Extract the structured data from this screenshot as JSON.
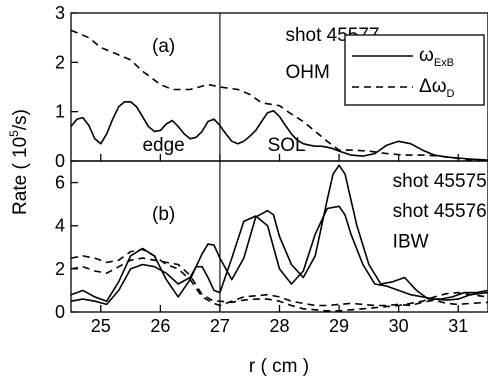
{
  "chart_data": {
    "type": "line",
    "ylabel": "Rate  ( 10",
    "ylabel_exp": "5",
    "ylabel_unit": "/s)",
    "xlabel": "r  ( cm )",
    "xlim": [
      24.5,
      31.5
    ],
    "xticks": [
      25,
      26,
      27,
      28,
      29,
      30,
      31
    ],
    "vertical_line_x": 27,
    "legend": {
      "position": "top-right",
      "items": [
        {
          "style": "solid",
          "symbol": "ω",
          "sub": "ExB"
        },
        {
          "style": "dashed",
          "symbol": "Δω",
          "sub": "D"
        }
      ]
    },
    "panels": [
      {
        "id": "a",
        "label": "(a)",
        "ylim": [
          0,
          3
        ],
        "yticks": [
          0,
          1,
          2,
          3
        ],
        "annotations": [
          {
            "text": "shot 45577",
            "x": 28.1,
            "y": 2.43
          },
          {
            "text": "OHM",
            "x": 28.1,
            "y": 1.68
          },
          {
            "text": "edge",
            "x": 25.7,
            "y": 0.2
          },
          {
            "text": "SOL",
            "x": 27.8,
            "y": 0.2
          }
        ],
        "series": [
          {
            "style": "solid",
            "x": [
              24.5,
              24.6,
              24.7,
              24.8,
              24.9,
              25.0,
              25.1,
              25.2,
              25.3,
              25.4,
              25.5,
              25.6,
              25.7,
              25.8,
              25.9,
              26.0,
              26.1,
              26.2,
              26.3,
              26.4,
              26.5,
              26.6,
              26.7,
              26.8,
              26.9,
              27.0,
              27.1,
              27.2,
              27.3,
              27.4,
              27.5,
              27.6,
              27.7,
              27.8,
              27.9,
              28.0,
              28.1,
              28.2,
              28.3,
              28.4,
              28.5,
              28.6,
              28.7,
              28.8,
              28.9,
              29.0,
              29.2,
              29.4,
              29.6,
              29.8,
              30.0,
              30.2,
              30.4,
              30.6,
              30.8,
              31.0,
              31.2,
              31.5
            ],
            "y": [
              0.7,
              0.85,
              0.88,
              0.72,
              0.45,
              0.35,
              0.55,
              0.85,
              1.1,
              1.2,
              1.2,
              1.1,
              0.9,
              0.7,
              0.6,
              0.62,
              0.75,
              0.82,
              0.7,
              0.55,
              0.45,
              0.48,
              0.6,
              0.8,
              0.85,
              0.72,
              0.55,
              0.4,
              0.35,
              0.4,
              0.5,
              0.62,
              0.8,
              0.98,
              1.02,
              0.9,
              0.72,
              0.55,
              0.42,
              0.35,
              0.32,
              0.3,
              0.3,
              0.28,
              0.25,
              0.2,
              0.12,
              0.1,
              0.15,
              0.32,
              0.4,
              0.35,
              0.22,
              0.12,
              0.08,
              0.06,
              0.04,
              0.02
            ]
          },
          {
            "style": "dashed",
            "x": [
              24.5,
              24.8,
              25.0,
              25.3,
              25.5,
              25.7,
              26.0,
              26.2,
              26.5,
              26.8,
              27.0,
              27.3,
              27.5,
              27.7,
              28.0,
              28.2,
              28.4,
              28.6,
              28.8,
              29.0,
              29.2,
              29.5,
              29.8,
              30.1,
              30.4,
              30.7,
              31.0,
              31.2,
              31.5
            ],
            "y": [
              2.65,
              2.5,
              2.3,
              2.15,
              2.05,
              1.82,
              1.55,
              1.45,
              1.45,
              1.55,
              1.5,
              1.45,
              1.35,
              1.18,
              1.12,
              0.95,
              0.8,
              0.6,
              0.4,
              0.22,
              0.22,
              0.2,
              0.15,
              0.12,
              0.12,
              0.1,
              0.05,
              0.02,
              0.02
            ]
          }
        ]
      },
      {
        "id": "b",
        "label": "(b)",
        "ylim": [
          0,
          7
        ],
        "yticks": [
          0,
          2,
          4,
          6
        ],
        "annotations": [
          {
            "text": "shot 45575",
            "x": 29.9,
            "y": 5.8
          },
          {
            "text": "shot 45576",
            "x": 29.9,
            "y": 4.4
          },
          {
            "text": "IBW",
            "x": 29.9,
            "y": 3.0
          }
        ],
        "series": [
          {
            "style": "solid",
            "x": [
              24.5,
              24.7,
              24.9,
              25.1,
              25.3,
              25.5,
              25.7,
              25.9,
              26.1,
              26.3,
              26.5,
              26.7,
              26.8,
              26.9,
              27.0,
              27.2,
              27.4,
              27.6,
              27.8,
              27.9,
              28.0,
              28.2,
              28.4,
              28.6,
              28.8,
              28.9,
              29.0,
              29.1,
              29.3,
              29.5,
              29.7,
              29.9,
              30.1,
              30.3,
              30.5,
              30.7,
              30.9,
              31.1,
              31.3,
              31.5
            ],
            "y": [
              0.8,
              1.0,
              0.7,
              0.5,
              1.4,
              2.6,
              2.95,
              2.6,
              1.5,
              0.7,
              1.5,
              2.7,
              3.15,
              3.1,
              2.5,
              1.5,
              2.5,
              4.4,
              4.7,
              4.5,
              3.5,
              2.2,
              1.6,
              2.6,
              5.2,
              6.4,
              6.8,
              6.4,
              4.0,
              2.2,
              1.3,
              1.4,
              1.6,
              1.0,
              0.6,
              0.6,
              0.7,
              0.9,
              0.9,
              1.0
            ]
          },
          {
            "style": "solid",
            "x": [
              24.5,
              24.7,
              24.9,
              25.1,
              25.3,
              25.5,
              25.7,
              25.9,
              26.1,
              26.3,
              26.5,
              26.6,
              26.7,
              26.8,
              26.9,
              27.0,
              27.2,
              27.4,
              27.6,
              27.8,
              27.9,
              28.0,
              28.2,
              28.4,
              28.6,
              28.8,
              29.0,
              29.1,
              29.2,
              29.4,
              29.6,
              29.8,
              30.0,
              30.2,
              30.4,
              30.6,
              30.8,
              31.0,
              31.2,
              31.5
            ],
            "y": [
              0.5,
              0.6,
              0.5,
              0.35,
              1.0,
              2.0,
              2.2,
              2.1,
              1.8,
              1.3,
              1.6,
              2.1,
              2.1,
              1.6,
              1.0,
              0.9,
              2.5,
              4.2,
              4.45,
              4.0,
              3.0,
              2.0,
              1.3,
              1.9,
              3.6,
              4.8,
              4.9,
              4.5,
              3.6,
              2.2,
              1.3,
              1.2,
              1.0,
              0.8,
              0.7,
              0.6,
              0.55,
              0.6,
              0.8,
              0.9
            ]
          },
          {
            "style": "dashed",
            "x": [
              24.5,
              24.7,
              24.9,
              25.1,
              25.3,
              25.5,
              25.7,
              25.9,
              26.1,
              26.3,
              26.5,
              26.7,
              26.9,
              27.0,
              27.2,
              27.4,
              27.6,
              27.8,
              28.0,
              28.2,
              28.4,
              28.6,
              28.8,
              29.0,
              29.2,
              29.4,
              29.6,
              29.8,
              30.0,
              30.2,
              30.4,
              30.6,
              30.8,
              31.0,
              31.2,
              31.5
            ],
            "y": [
              2.5,
              2.6,
              2.5,
              2.3,
              2.4,
              2.8,
              2.9,
              2.6,
              2.2,
              2.0,
              1.5,
              0.7,
              0.4,
              0.3,
              0.5,
              0.7,
              0.75,
              0.8,
              0.7,
              0.5,
              0.4,
              0.3,
              0.3,
              0.35,
              0.4,
              0.35,
              0.3,
              0.3,
              0.35,
              0.3,
              0.45,
              0.55,
              0.4,
              0.35,
              0.4,
              0.45
            ]
          },
          {
            "style": "dashed",
            "x": [
              24.5,
              24.7,
              24.9,
              25.1,
              25.3,
              25.5,
              25.7,
              25.9,
              26.1,
              26.3,
              26.5,
              26.7,
              26.9,
              27.0,
              27.2,
              27.4,
              27.6,
              27.8,
              28.0,
              28.2,
              28.4,
              28.6,
              28.8,
              29.0,
              29.2,
              29.4,
              29.6,
              29.8,
              30.0,
              30.2,
              30.4,
              30.6,
              30.8,
              31.0,
              31.2,
              31.5
            ],
            "y": [
              2.0,
              2.1,
              1.9,
              1.8,
              2.1,
              2.4,
              2.5,
              2.4,
              2.3,
              2.2,
              1.7,
              0.8,
              0.5,
              0.5,
              0.45,
              0.55,
              0.6,
              0.6,
              0.5,
              0.3,
              0.15,
              0.1,
              0.05,
              0.05,
              0.1,
              0.15,
              0.2,
              0.25,
              0.3,
              0.4,
              0.5,
              0.7,
              0.85,
              0.9,
              0.8,
              0.7
            ]
          }
        ]
      }
    ]
  }
}
